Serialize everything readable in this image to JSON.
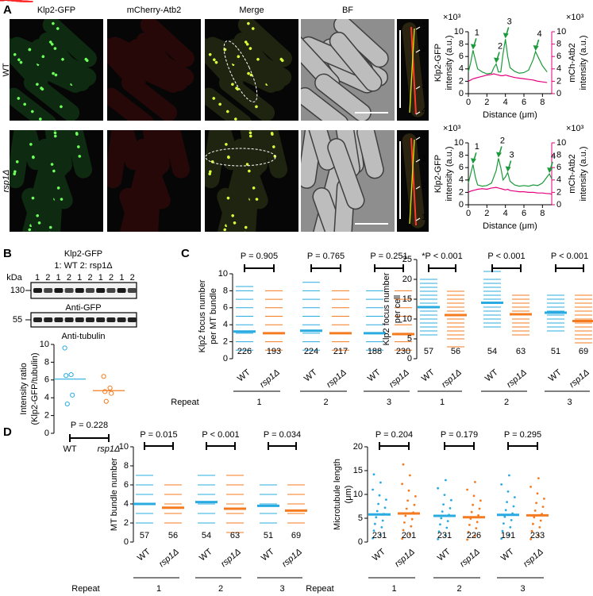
{
  "figure": {
    "panel_labels": [
      "A",
      "B",
      "C",
      "D"
    ],
    "panel_a": {
      "columns": [
        "Klp2-GFP",
        "mCherry-Atb2",
        "Merge",
        "BF"
      ],
      "rows": [
        "WT",
        "rsp1Δ"
      ],
      "inset_labels": [
        [
          "1",
          "2",
          "3",
          "4"
        ],
        [
          "4",
          "3",
          "2",
          "1"
        ]
      ]
    },
    "panel_b": {
      "title": "Klp2-GFP",
      "key": "1: WT  2: rsp1Δ",
      "kda": "kDa",
      "lanes": [
        "1",
        "2",
        "1",
        "2",
        "1",
        "2",
        "1",
        "2",
        "1",
        "2"
      ],
      "markers": [
        "130",
        "55"
      ],
      "blots": [
        "Anti-GFP",
        "Anti-tubulin"
      ]
    }
  },
  "chart_data": [
    {
      "type": "line",
      "x_label": "Distance (μm)",
      "y_label": [
        "Klp2-GFP",
        "intensity (a.u.)"
      ],
      "y2_label": [
        "mCh-Atb2",
        "intensity (a.u.)"
      ],
      "y_multiplier": "×10³",
      "y2_multiplier": "×10³",
      "xlim": [
        0,
        9
      ],
      "xticks": [
        0,
        2,
        4,
        6,
        8
      ],
      "ylim": [
        0,
        10
      ],
      "yticks": [
        0,
        2,
        4,
        6,
        8,
        10
      ],
      "y2lim": [
        0,
        10
      ],
      "y2ticks": [
        0,
        2,
        4,
        6,
        8,
        10
      ],
      "x": [
        0,
        0.25,
        0.5,
        0.75,
        1,
        1.5,
        2,
        2.5,
        2.75,
        3,
        3.25,
        3.5,
        3.75,
        4,
        4.25,
        4.5,
        5,
        5.5,
        6,
        6.5,
        7,
        7.25,
        7.5,
        8,
        8.5
      ],
      "series": [
        {
          "color": "#1a9a3a",
          "values": [
            3.5,
            5.0,
            7.0,
            5.5,
            4.0,
            3.5,
            3.2,
            3.3,
            4.2,
            4.8,
            3.5,
            3.5,
            6.5,
            8.8,
            6.0,
            4.2,
            3.6,
            3.3,
            3.4,
            3.8,
            5.5,
            6.8,
            6.0,
            4.5,
            3.5
          ]
        },
        {
          "color": "#e6007e",
          "axis": "y2",
          "values": [
            2.0,
            2.2,
            2.4,
            2.5,
            2.6,
            2.8,
            3.0,
            3.1,
            3.2,
            3.1,
            3.0,
            2.9,
            2.9,
            3.0,
            2.9,
            2.8,
            2.6,
            2.5,
            2.4,
            2.3,
            2.2,
            2.1,
            2.0,
            1.9,
            1.8
          ]
        }
      ],
      "annotations": [
        {
          "label": "1",
          "x": 0.5,
          "y": 7.0
        },
        {
          "label": "2",
          "x": 3,
          "y": 4.8
        },
        {
          "label": "3",
          "x": 4,
          "y": 8.8
        },
        {
          "label": "4",
          "x": 7.25,
          "y": 6.8
        }
      ]
    },
    {
      "type": "line",
      "x_label": "Distance (μm)",
      "y_label": [
        "Klp2-GFP",
        "intensity (a.u.)"
      ],
      "y2_label": [
        "mCh-Atb2",
        "intensity (a.u.)"
      ],
      "y_multiplier": "×10³",
      "y2_multiplier": "×10³",
      "xlim": [
        0,
        9
      ],
      "xticks": [
        0,
        2,
        4,
        6,
        8
      ],
      "ylim": [
        0,
        10
      ],
      "yticks": [
        0,
        2,
        4,
        6,
        8,
        10
      ],
      "y2lim": [
        0,
        10
      ],
      "y2ticks": [
        0,
        2,
        4,
        6,
        8,
        10
      ],
      "x": [
        0,
        0.25,
        0.5,
        0.75,
        1,
        1.5,
        2,
        2.5,
        3,
        3.25,
        3.5,
        3.75,
        4,
        4.25,
        4.5,
        5,
        5.5,
        6,
        6.5,
        7,
        7.5,
        8,
        8.5,
        8.75,
        9
      ],
      "series": [
        {
          "color": "#1a9a3a",
          "values": [
            3.5,
            5.0,
            6.5,
            4.5,
            3.2,
            3.0,
            3.1,
            3.5,
            5.5,
            7.5,
            6.0,
            4.0,
            4.5,
            5.2,
            3.8,
            3.2,
            3.0,
            3.1,
            3.0,
            3.2,
            3.1,
            3.5,
            4.5,
            5.0,
            4.2
          ]
        },
        {
          "color": "#e6007e",
          "axis": "y2",
          "values": [
            2.0,
            2.2,
            2.3,
            2.4,
            2.5,
            2.6,
            2.5,
            2.7,
            2.8,
            2.7,
            2.6,
            2.5,
            2.4,
            2.5,
            2.3,
            2.2,
            2.1,
            2.1,
            2.0,
            2.0,
            1.9,
            1.9,
            1.8,
            1.8,
            1.7
          ]
        }
      ],
      "annotations": [
        {
          "label": "1",
          "x": 0.5,
          "y": 6.5
        },
        {
          "label": "2",
          "x": 3.25,
          "y": 7.5
        },
        {
          "label": "3",
          "x": 4.25,
          "y": 5.2
        },
        {
          "label": "4",
          "x": 8.75,
          "y": 5.0
        }
      ]
    },
    {
      "type": "scatter",
      "categories": [
        "WT",
        "rsp1Δ"
      ],
      "y_label": [
        "Intensity ratio",
        "(Klp2-GFP/tubulin)"
      ],
      "ylim": [
        0,
        10
      ],
      "yticks": [
        0,
        2,
        4,
        6,
        8,
        10
      ],
      "p_value": "P = 0.228",
      "groups": [
        {
          "color": "#29abe2",
          "values": [
            9.6,
            6.6,
            6.5,
            4.3,
            3.3
          ],
          "mean": 6.1
        },
        {
          "color": "#f47b20",
          "values": [
            6.4,
            5.1,
            4.7,
            4.5,
            3.6
          ],
          "mean": 4.8
        }
      ]
    },
    {
      "type": "strip",
      "marker": "dash",
      "y_label": [
        "Klp2 focus number",
        "per MT bundle"
      ],
      "ylim": [
        0,
        10
      ],
      "yticks": [
        0,
        2,
        4,
        6,
        8,
        10
      ],
      "p_values": [
        "P = 0.905",
        "P = 0.765",
        "P = 0.251"
      ],
      "repeat_label": "Repeat",
      "repeats": [
        "1",
        "2",
        "3"
      ],
      "groups": [
        {
          "category": "WT",
          "color": "#29abe2",
          "values": [
            1,
            2,
            3,
            4,
            5,
            6,
            7,
            8,
            8.5
          ],
          "mean": 3.2,
          "n": "226"
        },
        {
          "category": "rsp1Δ",
          "color": "#f47b20",
          "values": [
            1,
            2,
            3,
            4,
            5,
            6,
            7,
            8
          ],
          "mean": 3.0,
          "n": "193"
        },
        {
          "category": "WT",
          "color": "#29abe2",
          "values": [
            1,
            2,
            3,
            4,
            5,
            6,
            7,
            8,
            9
          ],
          "mean": 3.3,
          "n": "224"
        },
        {
          "category": "rsp1Δ",
          "color": "#f47b20",
          "values": [
            1,
            2,
            3,
            4,
            5,
            6,
            7,
            8
          ],
          "mean": 3.0,
          "n": "217"
        },
        {
          "category": "WT",
          "color": "#29abe2",
          "values": [
            1,
            2,
            3,
            4,
            5,
            6,
            7,
            8
          ],
          "mean": 3.0,
          "n": "188"
        },
        {
          "category": "rsp1Δ",
          "color": "#f47b20",
          "values": [
            1,
            2,
            3,
            4,
            5,
            6,
            7,
            8
          ],
          "mean": 2.9,
          "n": "230"
        }
      ]
    },
    {
      "type": "strip",
      "marker": "dash",
      "y_label": [
        "Klp2 focus number",
        "per cell"
      ],
      "ylim": [
        0,
        25
      ],
      "yticks": [
        0,
        5,
        10,
        15,
        20,
        25
      ],
      "p_values": [
        "*P < 0.001",
        "P < 0.001",
        "P < 0.001"
      ],
      "repeats": [
        "1",
        "2",
        "3"
      ],
      "groups": [
        {
          "category": "WT",
          "color": "#29abe2",
          "values": [
            6,
            7,
            8,
            9,
            10,
            11,
            12,
            13,
            14,
            15,
            16,
            17,
            18,
            19,
            20
          ],
          "mean": 13.0,
          "n": "57"
        },
        {
          "category": "rsp1Δ",
          "color": "#f47b20",
          "values": [
            3,
            5,
            6,
            7,
            8,
            9,
            10,
            11,
            12,
            13,
            14,
            15,
            16,
            17
          ],
          "mean": 11.0,
          "n": "56"
        },
        {
          "category": "WT",
          "color": "#29abe2",
          "values": [
            8,
            9,
            10,
            11,
            12,
            13,
            14,
            15,
            16,
            17,
            18,
            19,
            20,
            22
          ],
          "mean": 14.1,
          "n": "54"
        },
        {
          "category": "rsp1Δ",
          "color": "#f47b20",
          "values": [
            6,
            7,
            8,
            9,
            10,
            11,
            12,
            13,
            14,
            15,
            16
          ],
          "mean": 11.2,
          "n": "63"
        },
        {
          "category": "WT",
          "color": "#29abe2",
          "values": [
            7,
            8,
            9,
            10,
            11,
            12,
            13,
            14,
            15,
            16
          ],
          "mean": 11.6,
          "n": "51"
        },
        {
          "category": "rsp1Δ",
          "color": "#f47b20",
          "values": [
            4,
            5,
            6,
            7,
            8,
            9,
            10,
            11,
            12,
            13,
            14,
            15,
            16
          ],
          "mean": 9.5,
          "n": "69"
        }
      ]
    },
    {
      "type": "strip",
      "marker": "dash",
      "y_label": [
        "MT bundle number"
      ],
      "ylim": [
        0,
        10
      ],
      "yticks": [
        0,
        2,
        4,
        6,
        8,
        10
      ],
      "p_values": [
        "P = 0.015",
        "P < 0.001",
        "P = 0.034"
      ],
      "repeat_label": "Repeat",
      "repeats": [
        "1",
        "2",
        "3"
      ],
      "groups": [
        {
          "category": "WT",
          "color": "#29abe2",
          "values": [
            2,
            3,
            4,
            5,
            6,
            7
          ],
          "mean": 4.0,
          "n": "57"
        },
        {
          "category": "rsp1Δ",
          "color": "#f47b20",
          "values": [
            2,
            3,
            4,
            5,
            6
          ],
          "mean": 3.6,
          "n": "56"
        },
        {
          "category": "WT",
          "color": "#29abe2",
          "values": [
            2,
            3,
            4,
            5,
            6,
            7
          ],
          "mean": 4.2,
          "n": "54"
        },
        {
          "category": "rsp1Δ",
          "color": "#f47b20",
          "values": [
            1,
            2,
            3,
            4,
            5,
            6,
            7
          ],
          "mean": 3.5,
          "n": "63"
        },
        {
          "category": "WT",
          "color": "#29abe2",
          "values": [
            2,
            3,
            4,
            5,
            6
          ],
          "mean": 3.8,
          "n": "51"
        },
        {
          "category": "rsp1Δ",
          "color": "#f47b20",
          "values": [
            2,
            3,
            4,
            5,
            6
          ],
          "mean": 3.3,
          "n": "69"
        }
      ]
    },
    {
      "type": "strip",
      "marker": "dot",
      "y_label": [
        "Microtubule length",
        "(μm)"
      ],
      "ylim": [
        0,
        20
      ],
      "yticks": [
        0,
        5,
        10,
        15,
        20
      ],
      "p_values": [
        "P = 0.204",
        "P = 0.179",
        "P = 0.295"
      ],
      "repeat_label": "Repeat",
      "repeats": [
        "1",
        "2",
        "3"
      ],
      "groups": [
        {
          "category": "WT",
          "color": "#29abe2",
          "values": [
            0.8,
            1.5,
            2.4,
            3.1,
            3.8,
            4.5,
            5.2,
            5.9,
            6.5,
            7.2,
            8.0,
            8.9,
            9.8,
            11.0,
            12.5,
            14.2
          ],
          "mean": 5.8,
          "n": "231"
        },
        {
          "category": "rsp1Δ",
          "color": "#f47b20",
          "values": [
            0.7,
            1.6,
            2.5,
            3.3,
            4.1,
            4.8,
            5.5,
            6.2,
            7.0,
            7.8,
            8.7,
            9.6,
            10.8,
            12.2,
            14.0,
            16.3
          ],
          "mean": 6.0,
          "n": "201"
        },
        {
          "category": "WT",
          "color": "#29abe2",
          "values": [
            0.6,
            1.4,
            2.2,
            3.0,
            3.7,
            4.4,
            5.0,
            5.7,
            6.4,
            7.1,
            7.9,
            8.8,
            9.9,
            11.3,
            13.0
          ],
          "mean": 5.5,
          "n": "231"
        },
        {
          "category": "rsp1Δ",
          "color": "#f47b20",
          "values": [
            0.5,
            1.3,
            2.1,
            2.9,
            3.6,
            4.2,
            4.9,
            5.6,
            6.3,
            7.0,
            7.8,
            8.7,
            9.7,
            11.0,
            12.6
          ],
          "mean": 5.2,
          "n": "226"
        },
        {
          "category": "WT",
          "color": "#29abe2",
          "values": [
            0.7,
            1.5,
            2.3,
            3.1,
            3.9,
            4.6,
            5.3,
            6.0,
            6.7,
            7.5,
            8.4,
            9.4,
            10.6,
            12.1,
            14.0
          ],
          "mean": 5.7,
          "n": "191"
        },
        {
          "category": "rsp1Δ",
          "color": "#f47b20",
          "values": [
            0.6,
            1.4,
            2.3,
            3.1,
            3.8,
            4.5,
            5.2,
            5.9,
            6.6,
            7.4,
            8.2,
            9.1,
            10.2,
            11.6,
            13.4
          ],
          "mean": 5.6,
          "n": "233"
        }
      ]
    }
  ]
}
